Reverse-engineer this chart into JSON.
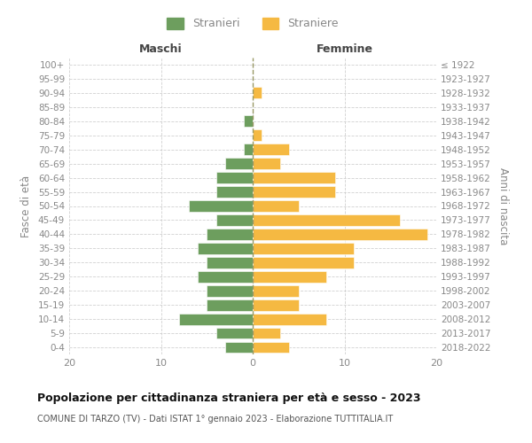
{
  "age_groups": [
    "0-4",
    "5-9",
    "10-14",
    "15-19",
    "20-24",
    "25-29",
    "30-34",
    "35-39",
    "40-44",
    "45-49",
    "50-54",
    "55-59",
    "60-64",
    "65-69",
    "70-74",
    "75-79",
    "80-84",
    "85-89",
    "90-94",
    "95-99",
    "100+"
  ],
  "birth_years": [
    "2018-2022",
    "2013-2017",
    "2008-2012",
    "2003-2007",
    "1998-2002",
    "1993-1997",
    "1988-1992",
    "1983-1987",
    "1978-1982",
    "1973-1977",
    "1968-1972",
    "1963-1967",
    "1958-1962",
    "1953-1957",
    "1948-1952",
    "1943-1947",
    "1938-1942",
    "1933-1937",
    "1928-1932",
    "1923-1927",
    "≤ 1922"
  ],
  "maschi": [
    3,
    4,
    8,
    5,
    5,
    6,
    5,
    6,
    5,
    4,
    7,
    4,
    4,
    3,
    1,
    0,
    1,
    0,
    0,
    0,
    0
  ],
  "femmine": [
    4,
    3,
    8,
    5,
    5,
    8,
    11,
    11,
    19,
    16,
    5,
    9,
    9,
    3,
    4,
    1,
    0,
    0,
    1,
    0,
    0
  ],
  "color_maschi": "#6d9e5e",
  "color_femmine": "#f5b942",
  "xlim": 20,
  "title": "Popolazione per cittadinanza straniera per età e sesso - 2023",
  "subtitle": "COMUNE DI TARZO (TV) - Dati ISTAT 1° gennaio 2023 - Elaborazione TUTTITALIA.IT",
  "ylabel_left": "Fasce di età",
  "ylabel_right": "Anni di nascita",
  "label_maschi": "Stranieri",
  "label_femmine": "Straniere",
  "header_maschi": "Maschi",
  "header_femmine": "Femmine",
  "bg_color": "#ffffff",
  "grid_color": "#cccccc",
  "tick_label_color": "#888888",
  "header_color": "#444444",
  "title_color": "#111111",
  "subtitle_color": "#555555"
}
